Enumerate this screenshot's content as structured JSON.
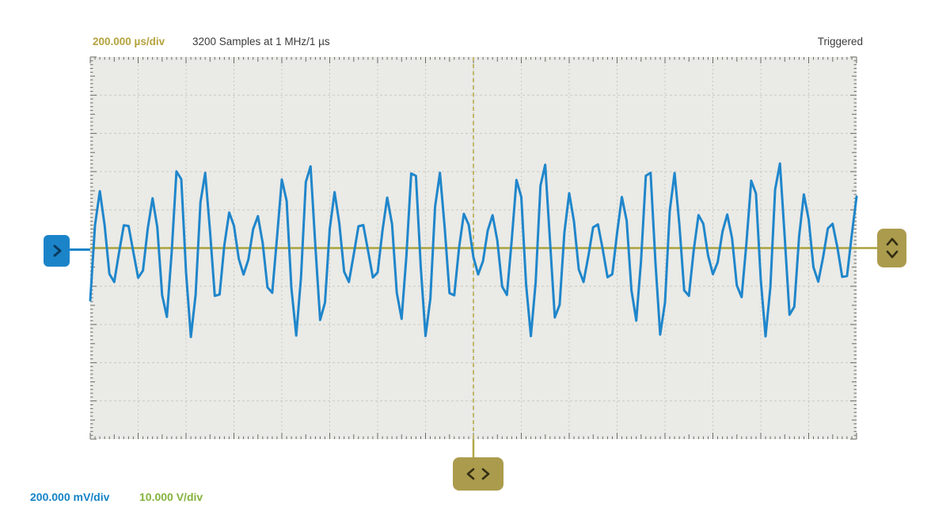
{
  "header": {
    "timebase": "200.000 µs/div",
    "samples_info": "3200 Samples at 1 MHz/1 µs",
    "trigger_status": "Triggered"
  },
  "footer": {
    "channel1_scale": "200.000 mV/div",
    "channel2_scale": "10.000 V/div"
  },
  "icons": {
    "channel_handle": "chevron-right-icon",
    "trigger_level_handle": "chevron-up-down-icon",
    "trigger_position_handle": "chevron-left-right-icon"
  },
  "colors": {
    "page_bg": "#ffffff",
    "plot_bg": "#eaeae6",
    "grid": "#c9c9c3",
    "tick": "#6b6b66",
    "text_dark": "#3b3b3b",
    "olive_text": "#b5a23d",
    "ch1_text": "#1583c5",
    "ch2_text": "#85b33c",
    "waveform": "#1f86cb",
    "trigger_line": "#b3a644",
    "level_line": "#a9a23c",
    "handle_olive": "#ab9b4d",
    "handle_blue": "#1b84c9",
    "chevron_dark": "#332d12",
    "chevron_blue": "#0b3a5e"
  },
  "chart_data": {
    "type": "line",
    "title": "Oscilloscope capture, AM modulated sine wave, triggered at center screen",
    "x_axis": {
      "divisions": 16,
      "per_div": "200.000 µs",
      "total_time": "3.2 ms",
      "samples": 3200,
      "sample_rate": "1 MHz/1 µs"
    },
    "y_axis": {
      "divisions": 10,
      "ch1_per_div": "200.000 mV",
      "ch2_per_div": "10.000 V"
    },
    "trigger": {
      "status": "Triggered",
      "position_div": 8,
      "level_div": 5
    },
    "signal": {
      "shape": "am_modulated_sine",
      "base_amplitude_div": 1.53,
      "mod_depth": 0.55,
      "peak_amplitude_div": 2.37,
      "notch_amplitude_div": 0.69,
      "carrier_period_div": 0.545,
      "beat_period_div": 2.446,
      "env_offset_div": 0.132,
      "phase_rad": 3.47,
      "samples_per_div": 10
    }
  }
}
